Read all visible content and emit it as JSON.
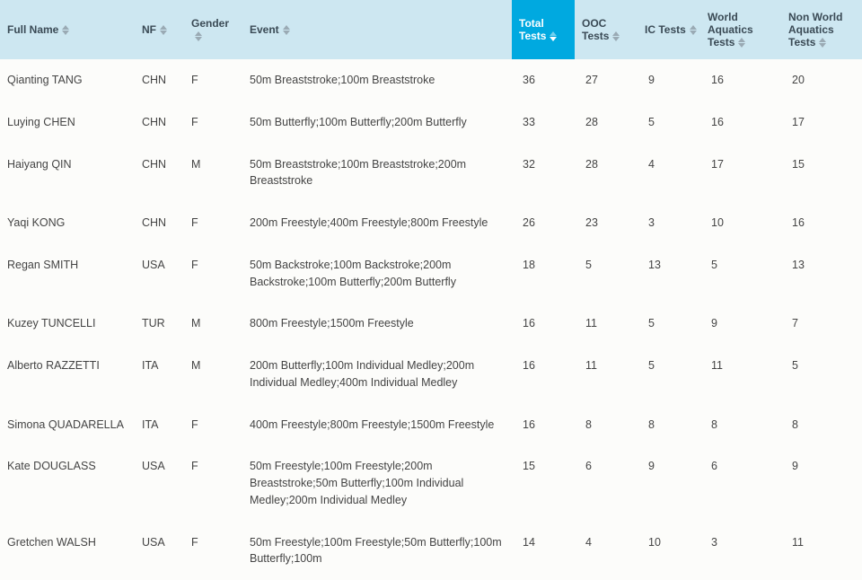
{
  "columns": [
    {
      "key": "full_name",
      "label": "Full Name",
      "class": "col-name",
      "sortable": true,
      "sorted": false
    },
    {
      "key": "nf",
      "label": "NF",
      "class": "col-nf",
      "sortable": true,
      "sorted": false
    },
    {
      "key": "gender",
      "label": "Gender",
      "class": "col-gender",
      "sortable": true,
      "sorted": false
    },
    {
      "key": "event",
      "label": "Event",
      "class": "col-event",
      "sortable": true,
      "sorted": false
    },
    {
      "key": "total",
      "label": "Total Tests",
      "class": "col-total",
      "sortable": true,
      "sorted": true,
      "sort_dir": "desc"
    },
    {
      "key": "ooc",
      "label": "OOC Tests",
      "class": "col-ooc",
      "sortable": true,
      "sorted": false
    },
    {
      "key": "ic",
      "label": "IC Tests",
      "class": "col-ic",
      "sortable": true,
      "sorted": false
    },
    {
      "key": "wa",
      "label": "World Aquatics Tests",
      "class": "col-wa",
      "sortable": true,
      "sorted": false
    },
    {
      "key": "nwa",
      "label": "Non World Aquatics Tests",
      "class": "col-nwa",
      "sortable": true,
      "sorted": false
    }
  ],
  "style": {
    "header_bg": "#cde7f1",
    "header_sorted_bg": "#00a9e0",
    "header_text": "#3a4a55",
    "header_sorted_text": "#ffffff",
    "body_bg": "#fcfcfa",
    "body_text": "#444444",
    "sort_arrow_inactive": "#9aaab4",
    "sort_arrow_active": "#3a4a55",
    "sort_arrow_sortedcol": "#ffffff",
    "font_size_header": 12,
    "font_size_body": 12.5
  },
  "rows": [
    {
      "full_name": "Qianting TANG",
      "nf": "CHN",
      "gender": "F",
      "event": "50m Breaststroke;100m Breaststroke",
      "total": 36,
      "ooc": 27,
      "ic": 9,
      "wa": 16,
      "nwa": 20
    },
    {
      "full_name": "Luying CHEN",
      "nf": "CHN",
      "gender": "F",
      "event": "50m Butterfly;100m Butterfly;200m Butterfly",
      "total": 33,
      "ooc": 28,
      "ic": 5,
      "wa": 16,
      "nwa": 17
    },
    {
      "full_name": "Haiyang QIN",
      "nf": "CHN",
      "gender": "M",
      "event": "50m Breaststroke;100m Breaststroke;200m Breaststroke",
      "total": 32,
      "ooc": 28,
      "ic": 4,
      "wa": 17,
      "nwa": 15
    },
    {
      "full_name": "Yaqi KONG",
      "nf": "CHN",
      "gender": "F",
      "event": "200m Freestyle;400m Freestyle;800m Freestyle",
      "total": 26,
      "ooc": 23,
      "ic": 3,
      "wa": 10,
      "nwa": 16
    },
    {
      "full_name": "Regan SMITH",
      "nf": "USA",
      "gender": "F",
      "event": "50m Backstroke;100m Backstroke;200m Backstroke;100m Butterfly;200m Butterfly",
      "total": 18,
      "ooc": 5,
      "ic": 13,
      "wa": 5,
      "nwa": 13
    },
    {
      "full_name": "Kuzey TUNCELLI",
      "nf": "TUR",
      "gender": "M",
      "event": "800m Freestyle;1500m Freestyle",
      "total": 16,
      "ooc": 11,
      "ic": 5,
      "wa": 9,
      "nwa": 7
    },
    {
      "full_name": "Alberto RAZZETTI",
      "nf": "ITA",
      "gender": "M",
      "event": "200m Butterfly;100m Individual Medley;200m Individual Medley;400m Individual Medley",
      "total": 16,
      "ooc": 11,
      "ic": 5,
      "wa": 11,
      "nwa": 5
    },
    {
      "full_name": "Simona QUADARELLA",
      "nf": "ITA",
      "gender": "F",
      "event": "400m Freestyle;800m Freestyle;1500m Freestyle",
      "total": 16,
      "ooc": 8,
      "ic": 8,
      "wa": 8,
      "nwa": 8
    },
    {
      "full_name": "Kate DOUGLASS",
      "nf": "USA",
      "gender": "F",
      "event": "50m Freestyle;100m Freestyle;200m Breaststroke;50m Butterfly;100m Individual Medley;200m Individual Medley",
      "total": 15,
      "ooc": 6,
      "ic": 9,
      "wa": 6,
      "nwa": 9
    },
    {
      "full_name": "Gretchen WALSH",
      "nf": "USA",
      "gender": "F",
      "event": "50m Freestyle;100m Freestyle;50m Butterfly;100m Butterfly;100m",
      "total": 14,
      "ooc": 4,
      "ic": 10,
      "wa": 3,
      "nwa": 11
    }
  ]
}
